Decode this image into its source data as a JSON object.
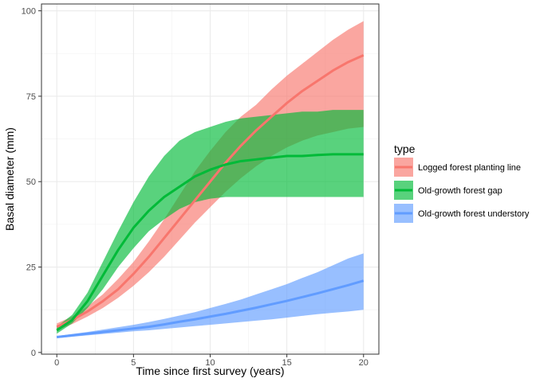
{
  "chart_data": {
    "type": "line",
    "title": "",
    "xlabel": "Time since first survey (years)",
    "ylabel": "Basal diameter (mm)",
    "xlim": [
      -1,
      21
    ],
    "ylim": [
      -0.5,
      102
    ],
    "x_ticks": [
      0,
      5,
      10,
      15,
      20
    ],
    "x_tick_labels": [
      "0",
      "5",
      "10",
      "15",
      "20"
    ],
    "y_ticks": [
      0,
      25,
      50,
      75,
      100
    ],
    "y_tick_labels": [
      "0",
      "25",
      "50",
      "75",
      "100"
    ],
    "grid": true,
    "legend": {
      "title": "type",
      "placement": "right"
    },
    "band_opacity": 0.65,
    "series": [
      {
        "name": "Logged forest planting line",
        "color": "#F8766D",
        "x": [
          0,
          1,
          2,
          3,
          4,
          5,
          6,
          7,
          8,
          9,
          10,
          11,
          12,
          13,
          14,
          15,
          16,
          17,
          18,
          19,
          20
        ],
        "y": [
          7.5,
          9.5,
          12,
          15,
          18.5,
          23,
          28,
          33.5,
          39,
          44.5,
          50,
          55.5,
          60.5,
          65,
          69,
          73,
          76.5,
          79.5,
          82.5,
          85,
          87
        ],
        "lower": [
          6.5,
          8.3,
          10.5,
          13,
          16,
          19.5,
          23.5,
          28,
          33,
          38,
          42.5,
          47,
          51,
          54.5,
          57.5,
          60,
          62,
          63.5,
          64.5,
          65.5,
          66
        ],
        "upper": [
          8.5,
          10.5,
          13.5,
          17,
          21.5,
          26.5,
          32.5,
          39,
          46,
          53,
          59,
          64.5,
          69,
          72.5,
          77,
          81,
          84.5,
          88,
          91.5,
          94.5,
          97
        ]
      },
      {
        "name": "Old-growth forest gap",
        "color": "#00BA38",
        "x": [
          0,
          1,
          2,
          3,
          4,
          5,
          6,
          7,
          8,
          9,
          10,
          11,
          12,
          13,
          14,
          15,
          16,
          17,
          18,
          19,
          20
        ],
        "y": [
          6.5,
          9.5,
          15,
          22.5,
          30,
          36.5,
          41.5,
          45.5,
          48.5,
          51.5,
          53.5,
          55,
          56,
          56.5,
          57,
          57.5,
          57.5,
          57.8,
          58,
          58,
          58
        ],
        "lower": [
          5.5,
          8.5,
          13,
          18.5,
          25,
          30.5,
          35.5,
          39,
          42,
          44,
          45,
          45.5,
          45.5,
          45.5,
          45.5,
          45.5,
          45.5,
          45.5,
          45.5,
          45.5,
          45.5
        ],
        "upper": [
          7.5,
          11,
          17.5,
          26.5,
          35.5,
          44,
          51.5,
          57.5,
          62,
          64.5,
          66,
          67.5,
          68.5,
          69,
          69.5,
          70,
          70.5,
          70.5,
          71,
          71,
          71
        ]
      },
      {
        "name": "Old-growth forest understory",
        "color": "#619CFF",
        "x": [
          0,
          1,
          2,
          3,
          4,
          5,
          6,
          7,
          8,
          9,
          10,
          11,
          12,
          13,
          14,
          15,
          16,
          17,
          18,
          19,
          20
        ],
        "y": [
          4.5,
          5,
          5.5,
          6,
          6.5,
          7,
          7.5,
          8.2,
          9,
          9.7,
          10.5,
          11.3,
          12.2,
          13.1,
          14.1,
          15.1,
          16.2,
          17.3,
          18.5,
          19.7,
          21
        ],
        "lower": [
          4.2,
          4.6,
          5,
          5.4,
          5.8,
          6.2,
          6.5,
          6.9,
          7.3,
          7.7,
          8.1,
          8.5,
          8.9,
          9.3,
          9.7,
          10.2,
          10.7,
          11.2,
          11.6,
          12,
          12.5
        ],
        "upper": [
          4.8,
          5.4,
          6,
          6.7,
          7.4,
          8.1,
          8.9,
          9.8,
          10.8,
          11.8,
          13,
          14.2,
          15.5,
          17,
          18.5,
          20,
          21.8,
          23.5,
          25.5,
          27.5,
          29
        ]
      }
    ]
  }
}
